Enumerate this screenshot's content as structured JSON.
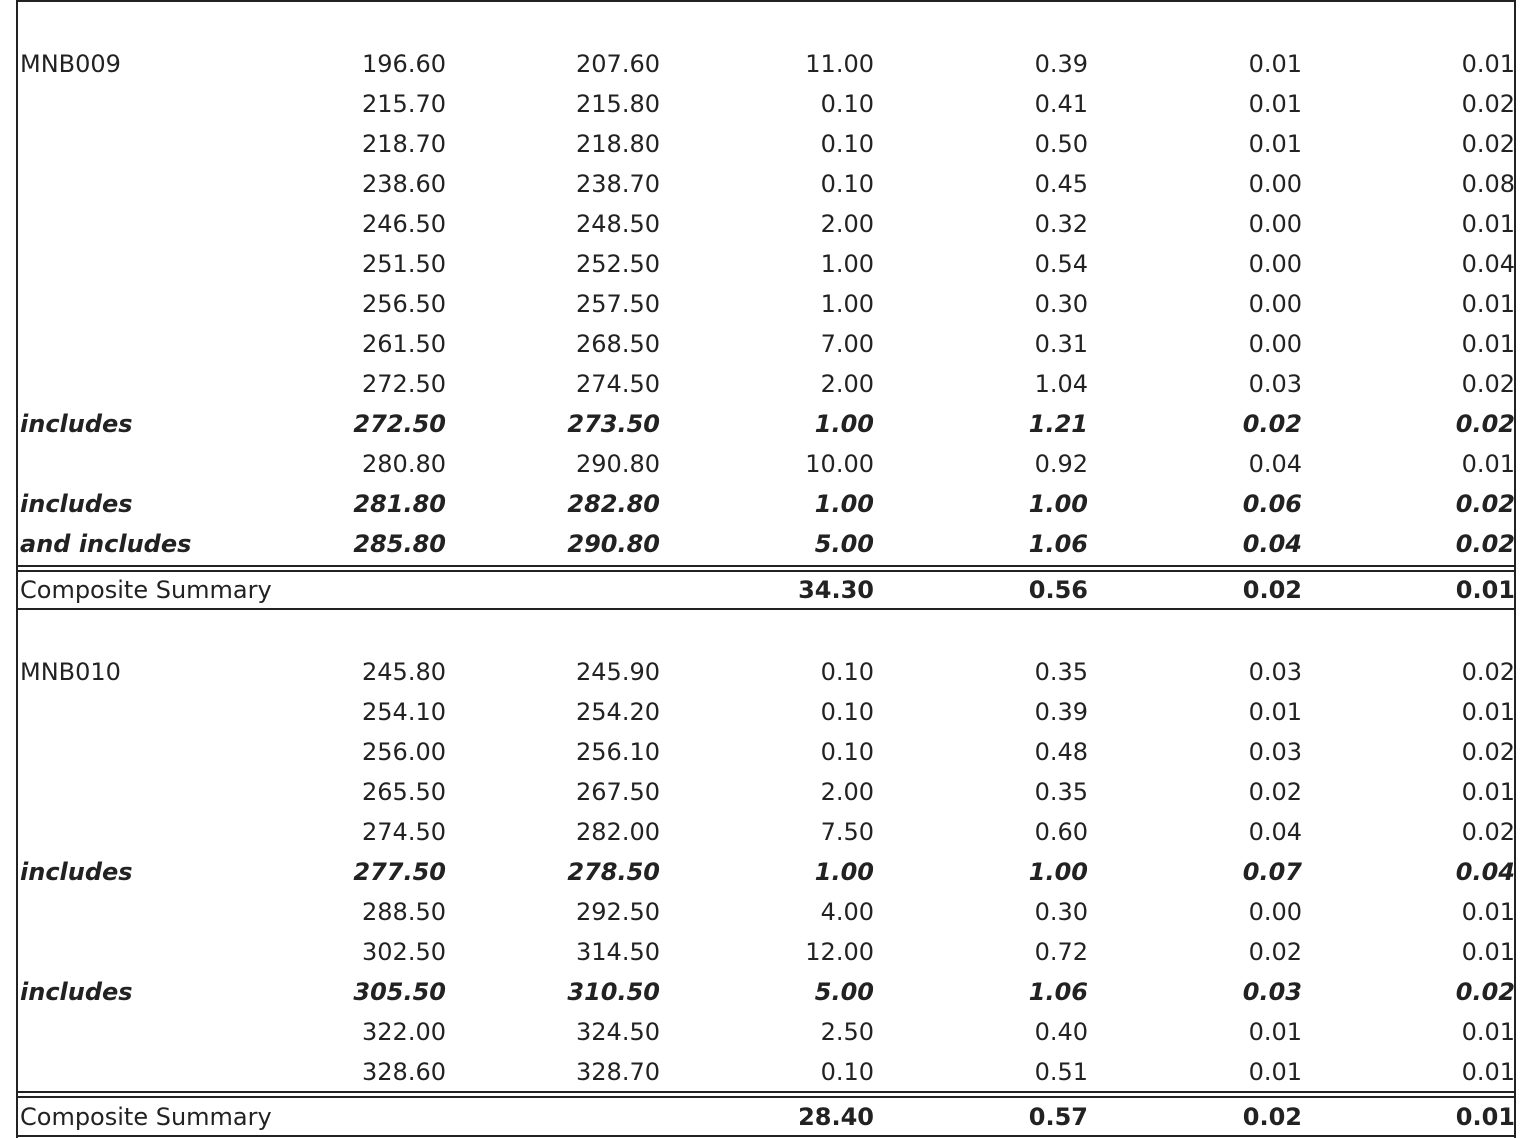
{
  "blocks": [
    {
      "rows": [
        {
          "label": "MNB009",
          "v": [
            "196.60",
            "207.60",
            "11.00",
            "0.39",
            "0.01",
            "0.01"
          ],
          "style": "normal"
        },
        {
          "label": "",
          "v": [
            "215.70",
            "215.80",
            "0.10",
            "0.41",
            "0.01",
            "0.02"
          ],
          "style": "normal"
        },
        {
          "label": "",
          "v": [
            "218.70",
            "218.80",
            "0.10",
            "0.50",
            "0.01",
            "0.02"
          ],
          "style": "normal"
        },
        {
          "label": "",
          "v": [
            "238.60",
            "238.70",
            "0.10",
            "0.45",
            "0.00",
            "0.08"
          ],
          "style": "normal"
        },
        {
          "label": "",
          "v": [
            "246.50",
            "248.50",
            "2.00",
            "0.32",
            "0.00",
            "0.01"
          ],
          "style": "normal"
        },
        {
          "label": "",
          "v": [
            "251.50",
            "252.50",
            "1.00",
            "0.54",
            "0.00",
            "0.04"
          ],
          "style": "normal"
        },
        {
          "label": "",
          "v": [
            "256.50",
            "257.50",
            "1.00",
            "0.30",
            "0.00",
            "0.01"
          ],
          "style": "normal"
        },
        {
          "label": "",
          "v": [
            "261.50",
            "268.50",
            "7.00",
            "0.31",
            "0.00",
            "0.01"
          ],
          "style": "normal"
        },
        {
          "label": "",
          "v": [
            "272.50",
            "274.50",
            "2.00",
            "1.04",
            "0.03",
            "0.02"
          ],
          "style": "normal"
        },
        {
          "label": "includes",
          "v": [
            "272.50",
            "273.50",
            "1.00",
            "1.21",
            "0.02",
            "0.02"
          ],
          "style": "bi"
        },
        {
          "label": "",
          "v": [
            "280.80",
            "290.80",
            "10.00",
            "0.92",
            "0.04",
            "0.01"
          ],
          "style": "normal"
        },
        {
          "label": "includes",
          "v": [
            "281.80",
            "282.80",
            "1.00",
            "1.00",
            "0.06",
            "0.02"
          ],
          "style": "bi"
        },
        {
          "label": "and includes",
          "v": [
            "285.80",
            "290.80",
            "5.00",
            "1.06",
            "0.04",
            "0.02"
          ],
          "style": "bi"
        }
      ],
      "summary": {
        "label": "Composite Summary",
        "v": [
          "34.30",
          "0.56",
          "0.02",
          "0.01"
        ]
      }
    },
    {
      "rows": [
        {
          "label": "MNB010",
          "v": [
            "245.80",
            "245.90",
            "0.10",
            "0.35",
            "0.03",
            "0.02"
          ],
          "style": "normal"
        },
        {
          "label": "",
          "v": [
            "254.10",
            "254.20",
            "0.10",
            "0.39",
            "0.01",
            "0.01"
          ],
          "style": "normal"
        },
        {
          "label": "",
          "v": [
            "256.00",
            "256.10",
            "0.10",
            "0.48",
            "0.03",
            "0.02"
          ],
          "style": "normal"
        },
        {
          "label": "",
          "v": [
            "265.50",
            "267.50",
            "2.00",
            "0.35",
            "0.02",
            "0.01"
          ],
          "style": "normal"
        },
        {
          "label": "",
          "v": [
            "274.50",
            "282.00",
            "7.50",
            "0.60",
            "0.04",
            "0.02"
          ],
          "style": "normal"
        },
        {
          "label": "includes",
          "v": [
            "277.50",
            "278.50",
            "1.00",
            "1.00",
            "0.07",
            "0.04"
          ],
          "style": "bi"
        },
        {
          "label": "",
          "v": [
            "288.50",
            "292.50",
            "4.00",
            "0.30",
            "0.00",
            "0.01"
          ],
          "style": "normal"
        },
        {
          "label": "",
          "v": [
            "302.50",
            "314.50",
            "12.00",
            "0.72",
            "0.02",
            "0.01"
          ],
          "style": "normal"
        },
        {
          "label": "includes",
          "v": [
            "305.50",
            "310.50",
            "5.00",
            "1.06",
            "0.03",
            "0.02"
          ],
          "style": "bi"
        },
        {
          "label": "",
          "v": [
            "322.00",
            "324.50",
            "2.50",
            "0.40",
            "0.01",
            "0.01"
          ],
          "style": "normal"
        },
        {
          "label": "",
          "v": [
            "328.60",
            "328.70",
            "0.10",
            "0.51",
            "0.01",
            "0.01"
          ],
          "style": "normal"
        }
      ],
      "summary": {
        "label": "Composite Summary",
        "v": [
          "28.40",
          "0.57",
          "0.02",
          "0.01"
        ]
      }
    }
  ]
}
